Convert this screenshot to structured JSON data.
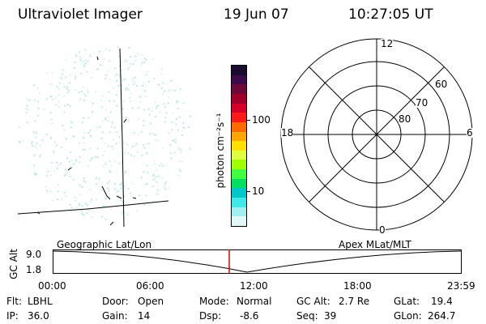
{
  "header": {
    "title": "Ultraviolet Imager",
    "date": "19 Jun 07",
    "time": "10:27:05 UT"
  },
  "colorbar": {
    "unit_label": "photon cm⁻²s⁻¹",
    "ticks": [
      "100",
      "10"
    ],
    "colors": [
      "#1a0a2e",
      "#3d0a4a",
      "#6e0a3a",
      "#a0002a",
      "#d4002a",
      "#ff1a1a",
      "#ff6a00",
      "#ffa500",
      "#ffe000",
      "#e0ff40",
      "#a0ff00",
      "#40ff40",
      "#00e060",
      "#00c8c8",
      "#40e8e8",
      "#a0f0f0",
      "#e0f8f8"
    ]
  },
  "polar_plot": {
    "labels": {
      "top": "12",
      "bottom": "0",
      "left": "18",
      "right": "6",
      "rings": [
        "60",
        "70",
        "80"
      ]
    }
  },
  "timeline": {
    "axis_label": "GC Alt",
    "y_ticks": [
      "9.0",
      "1.8"
    ],
    "left_caption": "Geographic Lat/Lon",
    "right_caption": "Apex MLat/MLT",
    "x_ticks": [
      "00:00",
      "06:00",
      "12:00",
      "18:00",
      "23:59"
    ],
    "current_marker_color": "#e00000"
  },
  "info": {
    "flt_label": "Flt:",
    "flt_value": "LBHL",
    "ip_label": "IP:",
    "ip_value": "36.0",
    "door_label": "Door:",
    "door_value": "Open",
    "gain_label": "Gain:",
    "gain_value": "14",
    "mode_label": "Mode:",
    "mode_value": "Normal",
    "dsp_label": "Dsp:",
    "dsp_value": "-8.6",
    "gcalt_label": "GC Alt:",
    "gcalt_value": "2.7 Re",
    "seq_label": "Seq:",
    "seq_value": "39",
    "glat_label": "GLat:",
    "glat_value": "19.4",
    "glon_label": "GLon:",
    "glon_value": "264.7"
  }
}
